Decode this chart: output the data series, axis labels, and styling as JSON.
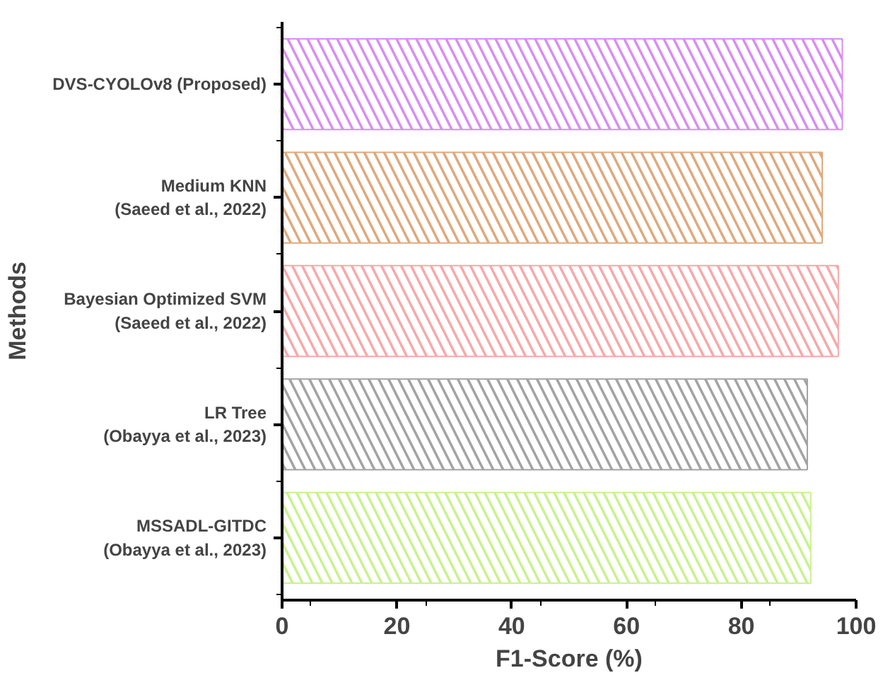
{
  "chart_data": {
    "type": "bar",
    "orientation": "horizontal",
    "xlabel": "F1-Score (%)",
    "ylabel": "Methods",
    "categories": [
      "DVS-CYOLOv8 (Proposed)",
      "Medium KNN\n(Saeed et al., 2022)",
      "Bayesian Optimized SVM\n(Saeed et al., 2022)",
      "LR Tree\n(Obayya et al., 2023)",
      "MSSADL-GITDC\n(Obayya et al., 2023)"
    ],
    "values": [
      97.6,
      94.1,
      96.9,
      91.5,
      92.1
    ],
    "colors": [
      "#d98ef2",
      "#e0a97c",
      "#f7a9a9",
      "#a3a3a3",
      "#c9f28f"
    ],
    "xlim": [
      0,
      100
    ],
    "xticks": [
      0,
      20,
      40,
      60,
      80,
      100
    ],
    "grid": false
  }
}
